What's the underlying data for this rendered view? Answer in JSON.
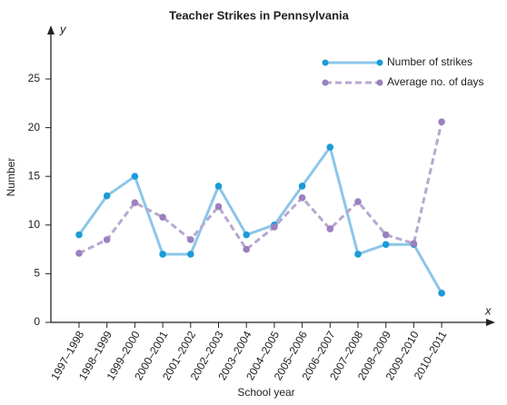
{
  "chart_data": {
    "type": "line",
    "title": "Teacher Strikes in Pennsylvania",
    "x_label": "School year",
    "y_label": "Number",
    "x_axis_symbol": "x",
    "y_axis_symbol": "y",
    "categories": [
      "1997–1998",
      "1998–1999",
      "1999–2000",
      "2000–2001",
      "2001–2002",
      "2002–2003",
      "2003–2004",
      "2004–2005",
      "2005–2006",
      "2006–2007",
      "2007–2008",
      "2008–2009",
      "2009–2010",
      "2010–2011"
    ],
    "series": [
      {
        "name": "Number of strikes",
        "color": "#1a9bd7",
        "line_color": "#8cc6e8",
        "dashed": false,
        "values": [
          9,
          13,
          15,
          7,
          7,
          14,
          9,
          10,
          14,
          18,
          7,
          8,
          8,
          3
        ]
      },
      {
        "name": "Average no. of days",
        "color": "#9a80bf",
        "line_color": "#b9a7d0",
        "dashed": true,
        "values": [
          7.1,
          8.5,
          12.3,
          10.8,
          8.5,
          11.9,
          7.5,
          9.8,
          12.8,
          9.6,
          12.4,
          9.0,
          8.1,
          20.6
        ]
      }
    ],
    "ylim": [
      0,
      30
    ],
    "yticks": [
      0,
      5,
      10,
      15,
      20,
      25
    ],
    "grid": false,
    "legend": "top-right"
  }
}
